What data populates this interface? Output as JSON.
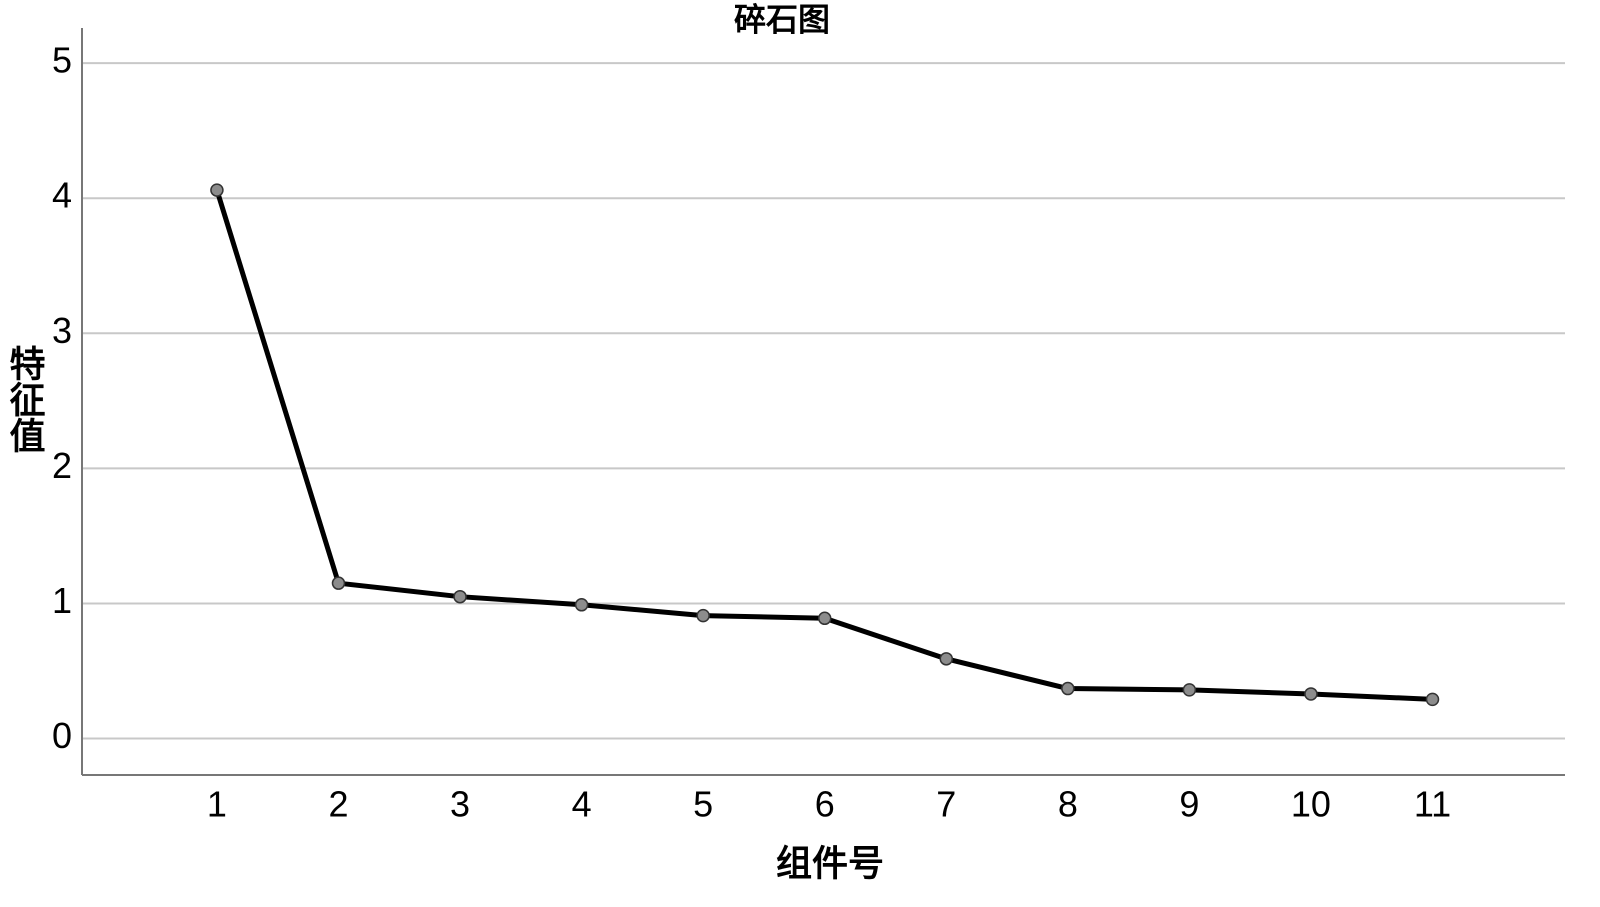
{
  "chart_data": {
    "type": "line",
    "title": "碎石图",
    "x_label": "组件号",
    "y_label": "特征值",
    "x": [
      1,
      2,
      3,
      4,
      5,
      6,
      7,
      8,
      9,
      10,
      11
    ],
    "series": [
      {
        "name": "特征值",
        "color": "#000000",
        "marker_color": "#8c8c8c",
        "values": [
          4.06,
          1.15,
          1.05,
          0.99,
          0.91,
          0.89,
          0.59,
          0.37,
          0.36,
          0.33,
          0.29
        ]
      }
    ],
    "xlim": [
      -0.11,
      12.09
    ],
    "xticks": [
      1,
      2,
      3,
      4,
      5,
      6,
      7,
      8,
      9,
      10,
      11
    ],
    "ylim": [
      -0.27,
      5.26
    ],
    "yticks": [
      0,
      1,
      2,
      3,
      4,
      5
    ],
    "grid": true
  }
}
